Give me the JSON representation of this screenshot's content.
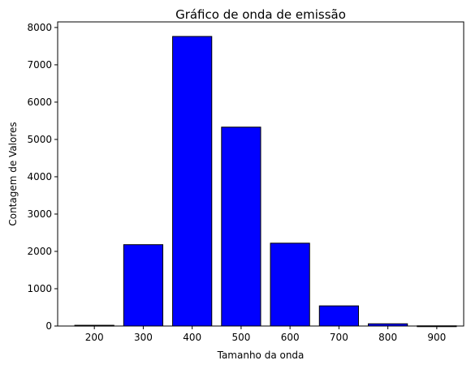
{
  "chart_data": {
    "type": "bar",
    "title": "Gráfico de onda de emissão",
    "xlabel": "Tamanho da onda",
    "ylabel": "Contagem de Valores",
    "x": [
      200,
      300,
      400,
      500,
      600,
      700,
      800,
      900
    ],
    "x_ticks": [
      "200",
      "300",
      "400",
      "500",
      "600",
      "700",
      "800",
      "900"
    ],
    "values": [
      20,
      2180,
      7760,
      5330,
      2220,
      540,
      60,
      5
    ],
    "ylim": [
      0,
      8150
    ],
    "y_ticks": [
      "0",
      "1000",
      "2000",
      "3000",
      "4000",
      "5000",
      "6000",
      "7000",
      "8000"
    ],
    "grid": false,
    "bar_color": "#0000ff",
    "edge_color": "#000000"
  }
}
